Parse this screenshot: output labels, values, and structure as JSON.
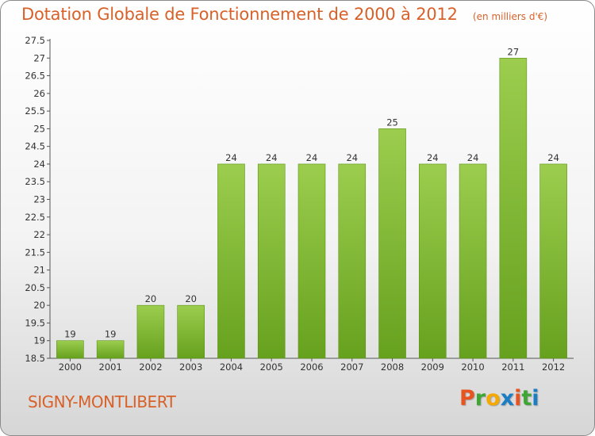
{
  "chart_data": {
    "type": "bar",
    "title": "Dotation Globale de Fonctionnement de 2000 à 2012",
    "subtitle": "(en milliers d'€)",
    "categories": [
      "2000",
      "2001",
      "2002",
      "2003",
      "2004",
      "2005",
      "2006",
      "2007",
      "2008",
      "2009",
      "2010",
      "2011",
      "2012"
    ],
    "values": [
      19,
      19,
      20,
      20,
      24,
      24,
      24,
      24,
      25,
      24,
      24,
      27,
      24
    ],
    "value_labels": [
      "19",
      "19",
      "20",
      "20",
      "24",
      "24",
      "24",
      "24",
      "25",
      "24",
      "24",
      "27",
      "24"
    ],
    "ylim": [
      18.5,
      27.5
    ],
    "yticks": [
      "18.5",
      "19",
      "19.5",
      "20",
      "20.5",
      "21",
      "21.5",
      "22",
      "22.5",
      "23",
      "23.5",
      "24",
      "24.5",
      "25",
      "25.5",
      "26",
      "26.5",
      "27",
      "27.5"
    ],
    "xlabel": "",
    "ylabel": "",
    "grid": false,
    "colors": {
      "bar_top": "#9ccd4e",
      "bar_bottom": "#66a11e",
      "bar_edge": "#5c9418",
      "axis": "#555555",
      "title": "#d8612a"
    }
  },
  "footer": {
    "commune": "SIGNY-MONTLIBERT"
  },
  "brand": {
    "letters": [
      "P",
      "r",
      "o",
      "x",
      "i",
      "t",
      "i"
    ],
    "colors": [
      "#e8541f",
      "#3fa535",
      "#f4a800",
      "#1b7dc4",
      "#e8541f",
      "#3fa535",
      "#1b7dc4"
    ]
  }
}
